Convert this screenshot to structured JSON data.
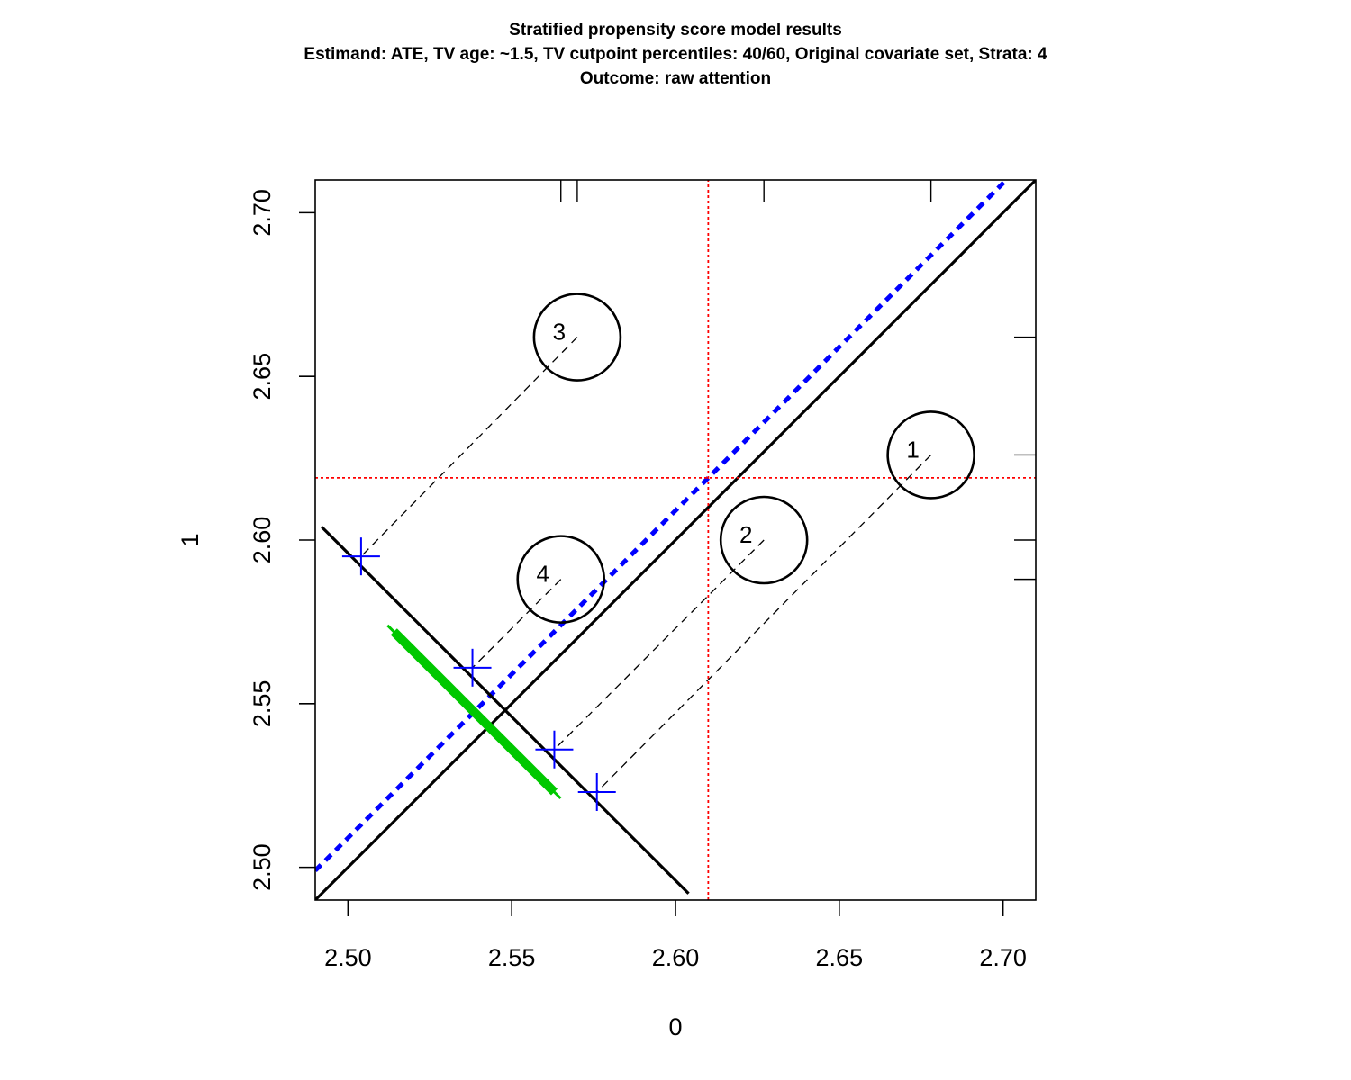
{
  "titles": {
    "line1": "Stratified propensity score model results",
    "line2": "Estimand: ATE, TV age: ~1.5, TV cutpoint percentiles: 40/60, Original covariate set, Strata: 4",
    "line3": "Outcome: raw attention"
  },
  "chart_data": {
    "type": "scatter",
    "title": "Stratified propensity score model results",
    "xlabel": "0",
    "ylabel": "1",
    "xlim": [
      2.49,
      2.71
    ],
    "ylim": [
      2.49,
      2.71
    ],
    "x_ticks": [
      "2.50",
      "2.55",
      "2.60",
      "2.65",
      "2.70"
    ],
    "y_ticks": [
      "2.50",
      "2.55",
      "2.60",
      "2.65",
      "2.70"
    ],
    "strata": [
      {
        "label": "1",
        "x": 2.678,
        "y": 2.626,
        "rug_x": 2.678,
        "rug_y": 2.626
      },
      {
        "label": "2",
        "x": 2.627,
        "y": 2.6,
        "rug_x": 2.627,
        "rug_y": 2.6
      },
      {
        "label": "3",
        "x": 2.57,
        "y": 2.662,
        "rug_x": 2.57,
        "rug_y": 2.662
      },
      {
        "label": "4",
        "x": 2.565,
        "y": 2.588,
        "rug_x": 2.565,
        "rug_y": 2.588
      }
    ],
    "projections": [
      {
        "stratum": "1",
        "x": 2.576,
        "y": 2.523
      },
      {
        "stratum": "2",
        "x": 2.563,
        "y": 2.536
      },
      {
        "stratum": "3",
        "x": 2.504,
        "y": 2.595
      },
      {
        "stratum": "4",
        "x": 2.538,
        "y": 2.561
      }
    ],
    "means": {
      "x": 2.61,
      "y": 2.619
    },
    "identity_line": {
      "intercept": 0,
      "slope": 1
    },
    "effect_line": {
      "intercept": 0.009,
      "slope": 1
    },
    "projection_axis": {
      "from": [
        2.492,
        2.604
      ],
      "to": [
        2.604,
        2.492
      ]
    },
    "confidence_interval": {
      "from": [
        2.514,
        2.572
      ],
      "to": [
        2.563,
        2.523
      ]
    },
    "colors": {
      "axes": "#000000",
      "identity_line": "#000000",
      "effect_line": "#0000ff",
      "means": "#ff0000",
      "projections": "#0000ff",
      "confidence_interval": "#00c800"
    },
    "grid": false,
    "legend": "none"
  }
}
